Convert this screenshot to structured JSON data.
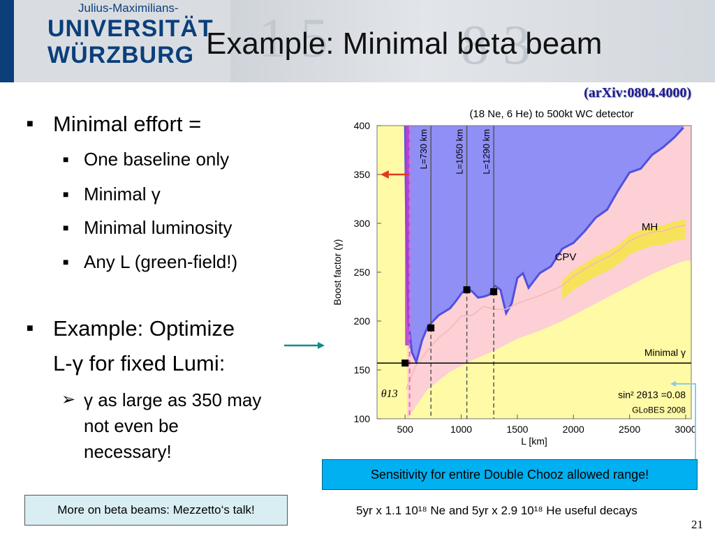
{
  "header": {
    "logo_top": "Julius-Maximilians-",
    "logo_line1": "UNIVERSITÄT",
    "logo_line2": "WÜRZBURG",
    "title": "Example: Minimal beta beam"
  },
  "citation": "(arXiv:0804.4000)",
  "bullets": {
    "b1": "Minimal effort =",
    "b1_subs": [
      "One baseline only",
      "Minimal γ",
      "Minimal luminosity",
      "Any L (green-field!)"
    ],
    "b2_line1": "Example: Optimize",
    "b2_line2": "L-γ for fixed Lumi:",
    "b2_sub_line1": "γ as large as 350 may",
    "b2_sub_line2": "not even be",
    "b2_sub_line3": "necessary!"
  },
  "boxes": {
    "talk": "More on beta beams: Mezzetto‘s talk!",
    "sensitivity": "Sensitivity for entire Double Chooz allowed range!"
  },
  "footnote": "5yr x 1.1 10¹⁸ Ne and 5yr x 2.9 10¹⁸ He useful decays",
  "page_number": "21",
  "colors": {
    "accent_blue": "#0a3f7a",
    "cpv_region": "#8f8ff5",
    "mh_region": "#fcd0d4",
    "theta13_region": "#fffaa6",
    "minimal_gamma_band": "#f7e35a",
    "arrow_red": "#e23a1a",
    "arrow_teal": "#138a8a",
    "box_light": "#d9eef2",
    "box_cyan": "#00b0f0"
  },
  "chart_data": {
    "type": "area",
    "title": "(18 Ne, 6 He) to 500kt WC detector",
    "xlabel": "L [km]",
    "ylabel": "Boost factor (γ)",
    "xlim": [
      250,
      3050
    ],
    "ylim": [
      100,
      400
    ],
    "xticks": [
      500,
      1000,
      1500,
      2000,
      2500,
      3000
    ],
    "yticks": [
      100,
      150,
      200,
      250,
      300,
      350,
      400
    ],
    "regions": [
      {
        "name": "θ13",
        "color": "#fffaa6"
      },
      {
        "name": "MH",
        "color": "#fcd0d4"
      },
      {
        "name": "CPV",
        "color": "#8f8ff5"
      }
    ],
    "series": [
      {
        "name": "CPV boundary",
        "x": [
          500,
          510,
          530,
          560,
          600,
          650,
          700,
          800,
          900,
          950,
          1000,
          1050,
          1100,
          1150,
          1200,
          1250,
          1300,
          1350,
          1400,
          1450,
          1500,
          1550,
          1600,
          1700,
          1800,
          1900,
          2000,
          2100,
          2200,
          2300,
          2400,
          2500,
          2600,
          2700,
          2800,
          2900,
          2980
        ],
        "y": [
          400,
          300,
          200,
          168,
          158,
          180,
          194,
          206,
          213,
          220,
          228,
          234,
          230,
          224,
          225,
          227,
          236,
          232,
          208,
          218,
          244,
          249,
          234,
          249,
          256,
          274,
          280,
          292,
          306,
          314,
          334,
          352,
          356,
          370,
          378,
          388,
          398
        ]
      },
      {
        "name": "MH boundary",
        "x": [
          510,
          540,
          600,
          700,
          800,
          900,
          1000,
          1100,
          1200,
          1300,
          1400,
          1500,
          1600,
          1700,
          1800,
          1900,
          2000,
          2100,
          2200,
          2300,
          2400,
          2500,
          2600,
          2700,
          2800,
          2900,
          3000
        ],
        "y": [
          130,
          140,
          155,
          170,
          183,
          192,
          205,
          206,
          215,
          212,
          212,
          218,
          222,
          226,
          231,
          236,
          246,
          253,
          260,
          265,
          272,
          282,
          287,
          291,
          292,
          296,
          298
        ]
      },
      {
        "name": "θ13 boundary",
        "x": [
          520,
          700,
          900,
          1100,
          1300,
          1500,
          1700,
          1900,
          2100,
          2300,
          2500,
          2700,
          2900,
          3000
        ],
        "y": [
          100,
          130,
          148,
          160,
          170,
          182,
          190,
          200,
          212,
          224,
          236,
          248,
          258,
          262
        ]
      }
    ],
    "optimization_points": [
      {
        "L": 500,
        "gamma": 157
      },
      {
        "L": 730,
        "gamma": 193
      },
      {
        "L": 1050,
        "gamma": 232
      },
      {
        "L": 1290,
        "gamma": 230
      }
    ],
    "baselines": [
      {
        "label": "L=730 km",
        "L": 730
      },
      {
        "label": "L=1050 km",
        "L": 1050
      },
      {
        "label": "L=1290 km",
        "L": 1290
      }
    ],
    "minimal_gamma": {
      "label": "Minimal γ",
      "gamma": 157
    },
    "annotations": {
      "cpv": "CPV",
      "mh": "MH",
      "theta13": "θ13",
      "sin2": "sin² 2θ13 =0.08",
      "globes": "GLoBES 2008"
    }
  }
}
